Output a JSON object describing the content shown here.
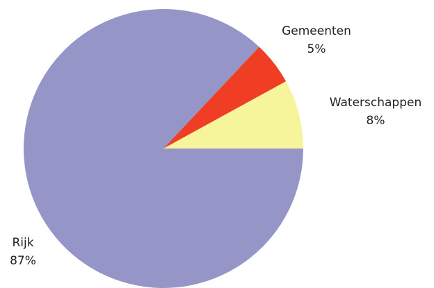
{
  "chart_data": {
    "type": "pie",
    "categories": [
      "Waterschappen",
      "Gemeenten",
      "Rijk"
    ],
    "values": [
      8,
      5,
      87
    ],
    "value_labels": [
      "8%",
      "5%",
      "87%"
    ],
    "colors": [
      "#f7f59b",
      "#ef3e23",
      "#9595c8"
    ]
  }
}
